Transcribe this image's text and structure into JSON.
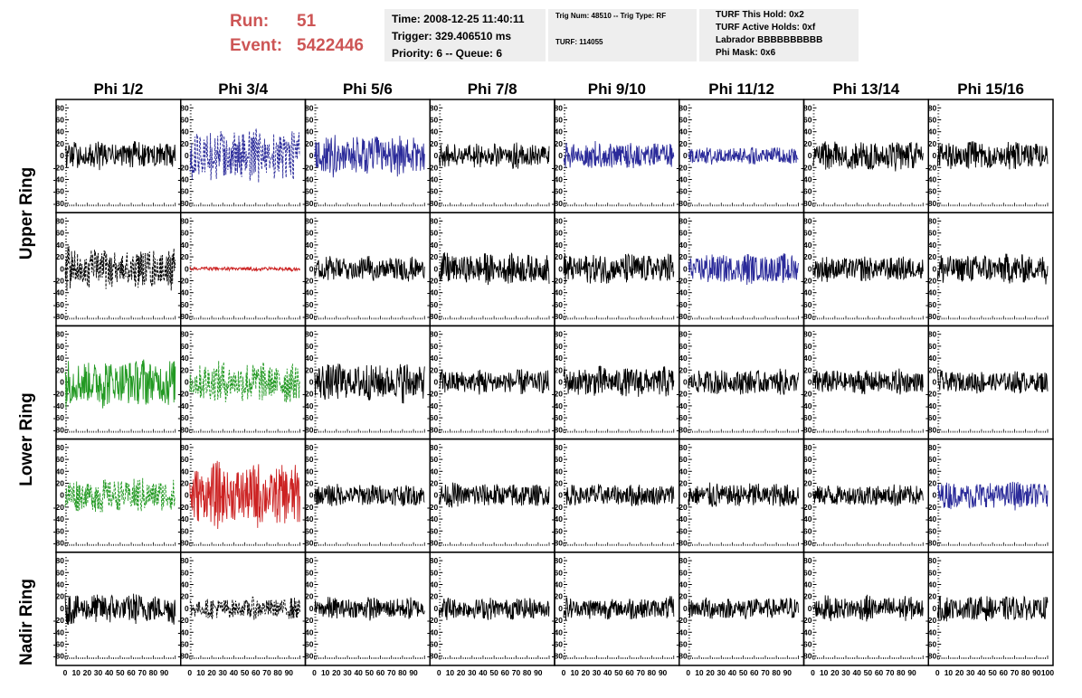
{
  "header": {
    "run_label": "Run:",
    "run_value": "51",
    "event_label": "Event:",
    "event_value": "5422446",
    "time": "Time: 2008-12-25 11:40:11",
    "trigger": "Trigger: 329.406510 ms",
    "priority": "Priority: 6 -- Queue: 6",
    "trig_num": "Trig Num: 48510 -- Trig Type: RF",
    "turf": "TURF: 114055",
    "turf_this_hold": "TURF This Hold: 0x2",
    "turf_active_holds": "TURF Active Holds: 0xf",
    "labrador": "Labrador BBBBBBBBBB",
    "phi_mask": "Phi Mask: 0x6"
  },
  "rings": {
    "upper": "Upper Ring",
    "lower": "Lower Ring",
    "nadir": "Nadir Ring"
  },
  "chart_data": {
    "type": "line",
    "title": "",
    "columns": [
      "Phi 1/2",
      "Phi 3/4",
      "Phi 5/6",
      "Phi 7/8",
      "Phi 9/10",
      "Phi 11/12",
      "Phi 13/14",
      "Phi 15/16"
    ],
    "rows": 5,
    "xlim": [
      0,
      100
    ],
    "ylim": [
      -85,
      85
    ],
    "x_tick_labels": [
      "0",
      "10",
      "20",
      "30",
      "40",
      "50",
      "60",
      "70",
      "80",
      "90",
      "100"
    ],
    "y_tick_labels": [
      "-80",
      "-60",
      "-40",
      "-20",
      "0",
      "20",
      "40",
      "60",
      "80"
    ],
    "grid": false,
    "colors": {
      "black": "#000000",
      "blue": "#2b2b9a",
      "red": "#cc2222",
      "green": "#229922",
      "text_red": "#cd5555",
      "box_bg": "#eeeeee"
    },
    "panels": [
      [
        {
          "color": "black",
          "amp": 20,
          "dashed": false
        },
        {
          "color": "blue",
          "amp": 38,
          "dashed": true
        },
        {
          "color": "blue",
          "amp": 30,
          "dashed": false
        },
        {
          "color": "black",
          "amp": 18,
          "dashed": false
        },
        {
          "color": "blue",
          "amp": 20,
          "dashed": false
        },
        {
          "color": "blue",
          "amp": 12,
          "dashed": false
        },
        {
          "color": "black",
          "amp": 22,
          "dashed": false
        },
        {
          "color": "black",
          "amp": 20,
          "dashed": false
        }
      ],
      [
        {
          "color": "black",
          "amp": 30,
          "dashed": true
        },
        {
          "color": "red",
          "amp": 3,
          "dashed": false
        },
        {
          "color": "black",
          "amp": 18,
          "dashed": false
        },
        {
          "color": "black",
          "amp": 22,
          "dashed": false
        },
        {
          "color": "black",
          "amp": 22,
          "dashed": false
        },
        {
          "color": "blue",
          "amp": 22,
          "dashed": false
        },
        {
          "color": "black",
          "amp": 18,
          "dashed": false
        },
        {
          "color": "black",
          "amp": 22,
          "dashed": false
        }
      ],
      [
        {
          "color": "green",
          "amp": 35,
          "dashed": false
        },
        {
          "color": "green",
          "amp": 30,
          "dashed": true
        },
        {
          "color": "black",
          "amp": 28,
          "dashed": false
        },
        {
          "color": "black",
          "amp": 18,
          "dashed": false
        },
        {
          "color": "black",
          "amp": 22,
          "dashed": false
        },
        {
          "color": "black",
          "amp": 18,
          "dashed": false
        },
        {
          "color": "black",
          "amp": 18,
          "dashed": false
        },
        {
          "color": "black",
          "amp": 16,
          "dashed": false
        }
      ],
      [
        {
          "color": "green",
          "amp": 25,
          "dashed": true
        },
        {
          "color": "red",
          "amp": 45,
          "dashed": false
        },
        {
          "color": "black",
          "amp": 16,
          "dashed": false
        },
        {
          "color": "black",
          "amp": 18,
          "dashed": false
        },
        {
          "color": "black",
          "amp": 16,
          "dashed": false
        },
        {
          "color": "black",
          "amp": 18,
          "dashed": false
        },
        {
          "color": "black",
          "amp": 16,
          "dashed": false
        },
        {
          "color": "blue",
          "amp": 20,
          "dashed": false
        }
      ],
      [
        {
          "color": "black",
          "amp": 22,
          "dashed": false
        },
        {
          "color": "black",
          "amp": 15,
          "dashed": true
        },
        {
          "color": "black",
          "amp": 16,
          "dashed": false
        },
        {
          "color": "black",
          "amp": 16,
          "dashed": false
        },
        {
          "color": "black",
          "amp": 16,
          "dashed": false
        },
        {
          "color": "black",
          "amp": 16,
          "dashed": false
        },
        {
          "color": "black",
          "amp": 18,
          "dashed": false
        },
        {
          "color": "black",
          "amp": 18,
          "dashed": false
        }
      ]
    ]
  }
}
